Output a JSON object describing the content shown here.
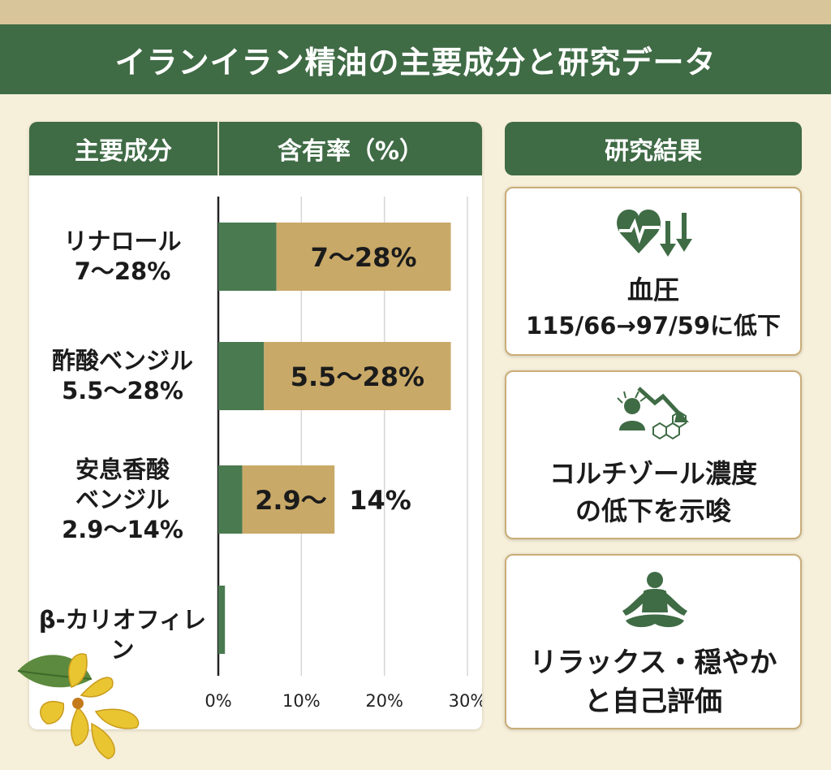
{
  "title": "イランイラン精油の主要成分と研究データ",
  "table_header": {
    "component": "主要成分",
    "rate": "含有率（%）"
  },
  "chart_data": {
    "type": "bar",
    "orientation": "horizontal",
    "xlim": [
      0,
      30
    ],
    "x_ticks": [
      "0%",
      "10%",
      "20%",
      "30%"
    ],
    "grid": true,
    "categories": [
      {
        "name_lines": [
          "リナロール",
          "7〜28%"
        ],
        "low": 7,
        "high": 28,
        "bar_label": "7〜28%"
      },
      {
        "name_lines": [
          "酢酸ベンジル",
          "5.5〜28%"
        ],
        "low": 5.5,
        "high": 28,
        "bar_label": "5.5〜28%"
      },
      {
        "name_lines": [
          "安息香酸",
          "ベンジル",
          "2.9〜14%"
        ],
        "low": 2.9,
        "high": 14,
        "bar_label": "2.9〜",
        "bar_label_outside": "14%"
      },
      {
        "name_lines": [
          "β-カリオフィレン"
        ],
        "low": 0,
        "high": 0.8,
        "bar_label": ""
      }
    ],
    "colors": {
      "low_segment": "#4a7a50",
      "range_segment": "#c9a968",
      "axis": "#222222",
      "grid": "#d5d5d5"
    }
  },
  "results": {
    "header": "研究結果",
    "cards": [
      {
        "icon": "heart-rate-down-icon",
        "lines": [
          "血圧",
          "115/66→97/59に低下"
        ]
      },
      {
        "icon": "stress-cortisol-down-icon",
        "lines": [
          "コルチゾール濃度",
          "の低下を示唆"
        ]
      },
      {
        "icon": "meditation-icon",
        "lines": [
          "リラックス・穏やか",
          "と自己評価"
        ]
      }
    ]
  },
  "colors": {
    "green": "#3f6b45",
    "gold": "#c9a968",
    "background": "#f6efd9"
  }
}
